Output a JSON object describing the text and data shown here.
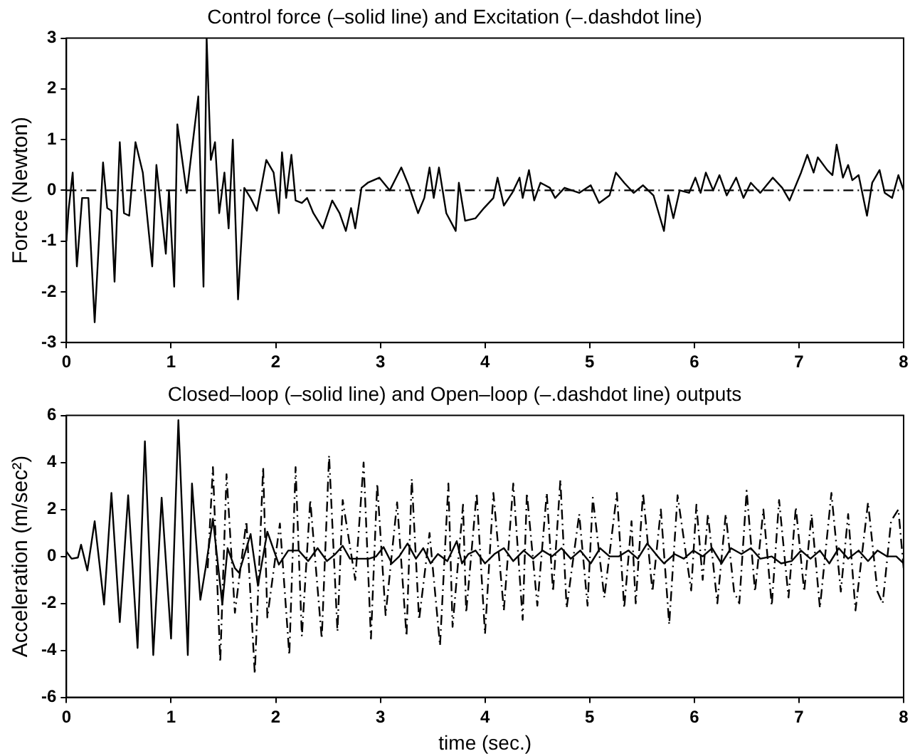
{
  "chart_data": [
    {
      "type": "line",
      "title": "Control force (–solid line) and Excitation (–.dashdot line)",
      "ylabel": "Force (Newton)",
      "xlim": [
        0,
        8
      ],
      "xticks": [
        0,
        1,
        2,
        3,
        4,
        5,
        6,
        7,
        8
      ],
      "ylim": [
        -3,
        3
      ],
      "yticks": [
        -3,
        -2,
        -1,
        0,
        1,
        2,
        3
      ],
      "grid": false,
      "legend": false,
      "marker": "none",
      "series": [
        {
          "color": "#000000",
          "line_style": "solid",
          "x": [
            0,
            0.02,
            0.06,
            0.1,
            0.15,
            0.21,
            0.27,
            0.35,
            0.39,
            0.43,
            0.46,
            0.51,
            0.55,
            0.6,
            0.66,
            0.73,
            0.82,
            0.86,
            0.95,
            0.98,
            1.03,
            1.06,
            1.15,
            1.26,
            1.31,
            1.34,
            1.38,
            1.42,
            1.46,
            1.51,
            1.55,
            1.59,
            1.64,
            1.7,
            1.76,
            1.82,
            1.91,
            1.98,
            2.03,
            2.06,
            2.1,
            2.15,
            2.19,
            2.25,
            2.3,
            2.36,
            2.45,
            2.54,
            2.61,
            2.67,
            2.72,
            2.76,
            2.82,
            2.88,
            2.99,
            3.09,
            3.2,
            3.27,
            3.36,
            3.42,
            3.47,
            3.51,
            3.56,
            3.63,
            3.72,
            3.75,
            3.81,
            3.91,
            3.99,
            4.08,
            4.12,
            4.18,
            4.26,
            4.33,
            4.36,
            4.42,
            4.47,
            4.53,
            4.62,
            4.67,
            4.76,
            4.9,
            5.01,
            5.09,
            5.19,
            5.25,
            5.33,
            5.42,
            5.51,
            5.61,
            5.71,
            5.75,
            5.8,
            5.86,
            5.95,
            6.01,
            6.06,
            6.11,
            6.18,
            6.24,
            6.31,
            6.4,
            6.47,
            6.54,
            6.63,
            6.75,
            6.84,
            6.91,
            7.02,
            7.08,
            7.14,
            7.18,
            7.27,
            7.32,
            7.36,
            7.42,
            7.47,
            7.51,
            7.57,
            7.65,
            7.7,
            7.77,
            7.82,
            7.89,
            7.95,
            8
          ],
          "values": [
            -1.0,
            -0.4,
            0.35,
            -1.5,
            -0.15,
            -0.15,
            -2.6,
            0.55,
            -0.35,
            -0.4,
            -1.8,
            0.95,
            -0.45,
            -0.5,
            0.95,
            0.35,
            -1.5,
            0.5,
            -1.25,
            0,
            -1.9,
            1.3,
            -0.05,
            1.85,
            -1.9,
            3.0,
            0.6,
            0.95,
            -0.45,
            0.35,
            -0.75,
            1.0,
            -2.15,
            0.05,
            -0.15,
            -0.4,
            0.6,
            0.35,
            -0.45,
            0.75,
            -0.15,
            0.7,
            -0.2,
            -0.25,
            -0.15,
            -0.45,
            -0.75,
            -0.2,
            -0.45,
            -0.8,
            -0.35,
            -0.75,
            0.05,
            0.15,
            0.25,
            0,
            0.45,
            0.1,
            -0.45,
            -0.15,
            0.45,
            -0.15,
            0.45,
            -0.45,
            -0.8,
            0.15,
            -0.6,
            -0.55,
            -0.35,
            -0.15,
            0.25,
            -0.3,
            -0.05,
            0.25,
            -0.15,
            0.4,
            -0.2,
            0.15,
            0.05,
            -0.15,
            0.05,
            -0.05,
            0.1,
            -0.25,
            -0.1,
            0.35,
            0.15,
            -0.05,
            0.1,
            -0.1,
            -0.8,
            -0.1,
            -0.55,
            0,
            -0.05,
            0.25,
            -0.05,
            0.35,
            0,
            0.3,
            -0.1,
            0.25,
            -0.15,
            0.15,
            -0.05,
            0.25,
            0.05,
            -0.2,
            0.35,
            0.7,
            0.35,
            0.65,
            0.4,
            0.3,
            0.9,
            0.25,
            0.5,
            0.2,
            0.3,
            -0.5,
            0.15,
            0.4,
            -0.05,
            -0.15,
            0.3,
            0
          ]
        },
        {
          "color": "#000000",
          "line_style": "dashdot",
          "x": [
            0,
            8
          ],
          "values": [
            0,
            0
          ]
        }
      ]
    },
    {
      "type": "line",
      "title": "Closed–loop (–solid line) and Open–loop (–.dashdot line) outputs",
      "xlabel": "time (sec.)",
      "ylabel": "Acceleration (m/sec²)",
      "xlim": [
        0,
        8
      ],
      "xticks": [
        0,
        1,
        2,
        3,
        4,
        5,
        6,
        7,
        8
      ],
      "ylim": [
        -6,
        6
      ],
      "yticks": [
        -6,
        -4,
        -2,
        0,
        2,
        4,
        6
      ],
      "grid": false,
      "legend": false,
      "marker": "none",
      "series": [
        {
          "color": "#000000",
          "line_style": "dashdot",
          "x": [
            1.35,
            1.4,
            1.47,
            1.53,
            1.61,
            1.72,
            1.8,
            1.88,
            1.92,
            2.04,
            2.13,
            2.19,
            2.25,
            2.33,
            2.44,
            2.51,
            2.59,
            2.64,
            2.76,
            2.84,
            2.91,
            2.97,
            3.05,
            3.16,
            3.25,
            3.3,
            3.37,
            3.47,
            3.57,
            3.65,
            3.69,
            3.79,
            3.82,
            3.92,
            4.0,
            4.08,
            4.18,
            4.27,
            4.36,
            4.4,
            4.5,
            4.59,
            4.65,
            4.72,
            4.78,
            4.9,
            4.98,
            5.03,
            5.14,
            5.26,
            5.33,
            5.4,
            5.44,
            5.51,
            5.6,
            5.68,
            5.76,
            5.84,
            5.97,
            6.02,
            6.08,
            6.13,
            6.22,
            6.3,
            6.38,
            6.43,
            6.5,
            6.58,
            6.66,
            6.74,
            6.81,
            6.9,
            6.97,
            7.05,
            7.12,
            7.2,
            7.31,
            7.4,
            7.47,
            7.54,
            7.66,
            7.75,
            7.8,
            7.88,
            7.95,
            8
          ],
          "values": [
            -0.5,
            3.8,
            -4.5,
            3.5,
            -2.4,
            1.5,
            -5.0,
            3.8,
            -2.6,
            1.4,
            -4.2,
            3.8,
            -3.4,
            2.4,
            -3.5,
            4.3,
            -3.2,
            2.4,
            -1.0,
            4.0,
            -3.5,
            3.1,
            -2.5,
            2.3,
            -3.4,
            3.3,
            -2.7,
            1.0,
            -3.8,
            3.1,
            -3.0,
            2.2,
            -2.4,
            2.7,
            -3.3,
            2.7,
            -2.3,
            3.1,
            -2.7,
            2.7,
            -2.1,
            2.7,
            -1.5,
            3.25,
            -2.2,
            1.8,
            -2.1,
            2.5,
            -1.75,
            2.7,
            -2.2,
            1.5,
            -2.0,
            2.7,
            -1.5,
            2.0,
            -2.9,
            2.6,
            -1.45,
            2.2,
            -1.0,
            1.8,
            -2.0,
            1.8,
            -1.5,
            -2.0,
            2.8,
            -1.5,
            2.0,
            -2.1,
            2.4,
            -1.75,
            2.1,
            -1.5,
            1.8,
            -2.2,
            2.7,
            -1.5,
            1.8,
            -2.3,
            2.3,
            -1.5,
            -2.0,
            1.5,
            2.0,
            -0.5
          ]
        },
        {
          "color": "#000000",
          "line_style": "solid",
          "x": [
            0,
            0.05,
            0.11,
            0.14,
            0.2,
            0.27,
            0.36,
            0.43,
            0.51,
            0.59,
            0.68,
            0.75,
            0.83,
            0.91,
            1.0,
            1.07,
            1.16,
            1.2,
            1.28,
            1.33,
            1.4,
            1.49,
            1.54,
            1.61,
            1.65,
            1.76,
            1.83,
            1.92,
            2.03,
            2.12,
            2.22,
            2.31,
            2.4,
            2.49,
            2.57,
            2.64,
            2.71,
            2.8,
            2.89,
            2.96,
            3.03,
            3.11,
            3.18,
            3.26,
            3.34,
            3.41,
            3.48,
            3.55,
            3.64,
            3.73,
            3.78,
            3.84,
            3.91,
            4.0,
            4.09,
            4.18,
            4.27,
            4.37,
            4.46,
            4.55,
            4.64,
            4.73,
            4.82,
            4.91,
            5.01,
            5.1,
            5.19,
            5.28,
            5.37,
            5.46,
            5.55,
            5.65,
            5.71,
            5.81,
            5.9,
            5.99,
            6.08,
            6.17,
            6.26,
            6.35,
            6.45,
            6.54,
            6.63,
            6.74,
            6.83,
            6.93,
            7.02,
            7.11,
            7.2,
            7.29,
            7.38,
            7.47,
            7.57,
            7.66,
            7.75,
            7.84,
            7.93,
            8
          ],
          "values": [
            0.2,
            -0.1,
            -0.05,
            0.5,
            -0.6,
            1.5,
            -2.05,
            2.7,
            -2.8,
            2.6,
            -3.9,
            4.9,
            -4.2,
            2.5,
            -3.5,
            5.8,
            -4.2,
            3.1,
            -1.85,
            -0.5,
            1.6,
            -2.05,
            0.35,
            -0.5,
            -0.7,
            0.95,
            -1.25,
            1.05,
            -0.35,
            0.25,
            0.25,
            -0.2,
            0.35,
            -0.2,
            0.1,
            0.45,
            -0.1,
            -0.1,
            -0.1,
            0,
            0.4,
            -0.3,
            0,
            0.55,
            -0.1,
            0.35,
            -0.3,
            0.1,
            -0.2,
            0.65,
            -0.3,
            0.1,
            0.25,
            -0.3,
            0.1,
            0.35,
            -0.2,
            0.25,
            -0.1,
            0.25,
            0,
            0.35,
            -0.1,
            0.25,
            -0.3,
            0.35,
            0,
            0,
            0.25,
            -0.1,
            0.55,
            0,
            -0.3,
            0.1,
            -0.1,
            0.25,
            0,
            0.35,
            -0.3,
            0.35,
            0.1,
            0.35,
            -0.1,
            0,
            -0.3,
            -0.2,
            0.25,
            -0.1,
            0.25,
            -0.3,
            0.35,
            -0.1,
            0.25,
            -0.2,
            0.25,
            0,
            0,
            -0.3
          ]
        }
      ]
    }
  ]
}
